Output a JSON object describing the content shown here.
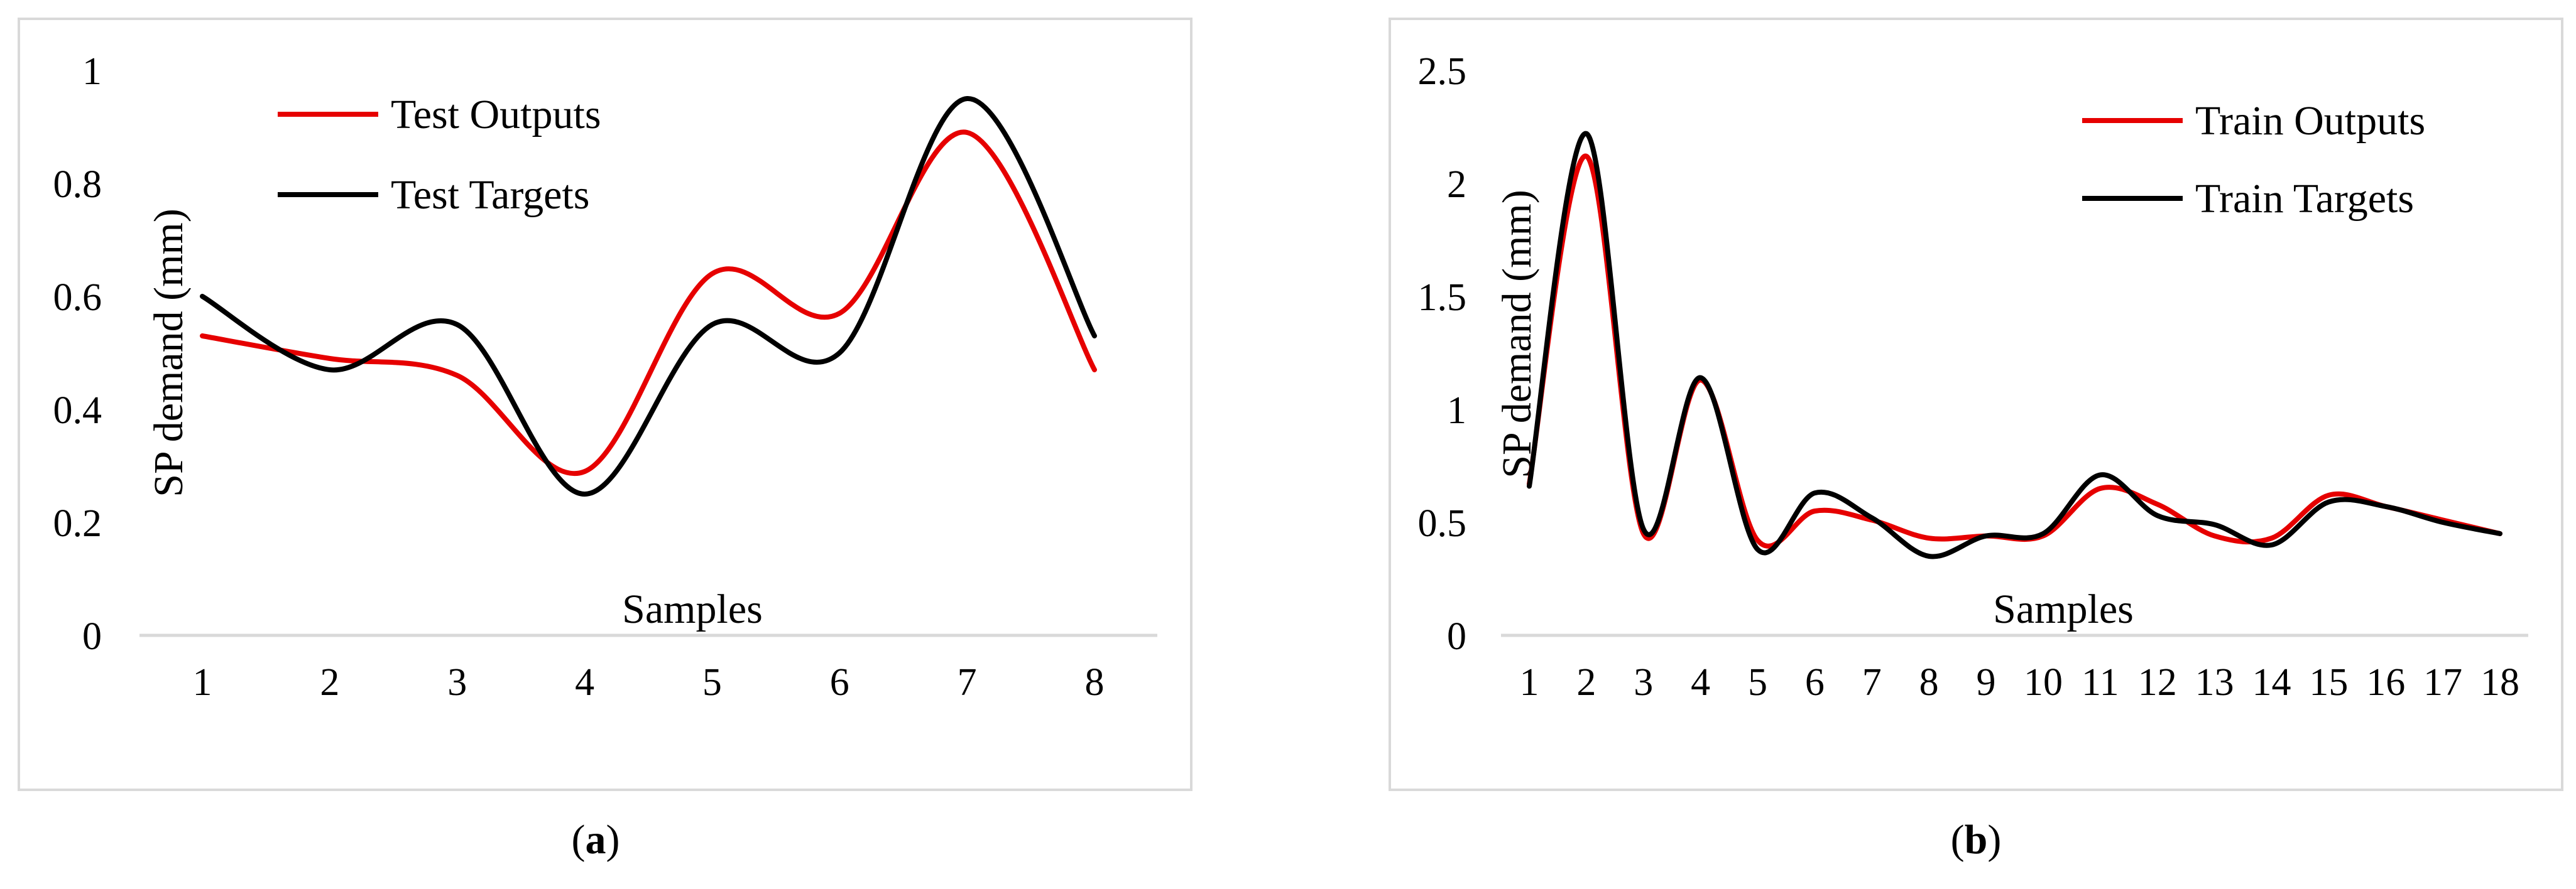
{
  "chart_data": [
    {
      "type": "line",
      "panel_label": "a",
      "xlabel": "Samples",
      "ylabel": "SP demand (mm)",
      "x": [
        1,
        2,
        3,
        4,
        5,
        6,
        7,
        8
      ],
      "ylim": [
        0,
        1
      ],
      "yticks": [
        "0",
        "0.2",
        "0.4",
        "0.6",
        "0.8",
        "1"
      ],
      "legend_position": "top-left",
      "grid": false,
      "series": [
        {
          "name": "Test Outputs",
          "color": "#e60000",
          "values": [
            0.53,
            0.49,
            0.46,
            0.29,
            0.64,
            0.57,
            0.89,
            0.47
          ]
        },
        {
          "name": "Test Targets",
          "color": "#000000",
          "values": [
            0.6,
            0.47,
            0.55,
            0.25,
            0.55,
            0.5,
            0.95,
            0.53
          ]
        }
      ]
    },
    {
      "type": "line",
      "panel_label": "b",
      "xlabel": "Samples",
      "ylabel": "SP demand (mm)",
      "x": [
        1,
        2,
        3,
        4,
        5,
        6,
        7,
        8,
        9,
        10,
        11,
        12,
        13,
        14,
        15,
        16,
        17,
        18
      ],
      "ylim": [
        0,
        2.5
      ],
      "yticks": [
        "0",
        "0.5",
        "1",
        "1.5",
        "2",
        "2.5"
      ],
      "legend_position": "top-right",
      "grid": false,
      "series": [
        {
          "name": "Train Outputs",
          "color": "#e60000",
          "values": [
            0.67,
            2.12,
            0.45,
            1.13,
            0.42,
            0.55,
            0.51,
            0.43,
            0.44,
            0.44,
            0.65,
            0.58,
            0.44,
            0.43,
            0.62,
            0.57,
            0.51,
            0.45
          ]
        },
        {
          "name": "Train Targets",
          "color": "#000000",
          "values": [
            0.66,
            2.22,
            0.47,
            1.14,
            0.38,
            0.63,
            0.52,
            0.35,
            0.44,
            0.45,
            0.71,
            0.53,
            0.49,
            0.4,
            0.59,
            0.57,
            0.5,
            0.45
          ]
        }
      ]
    }
  ]
}
